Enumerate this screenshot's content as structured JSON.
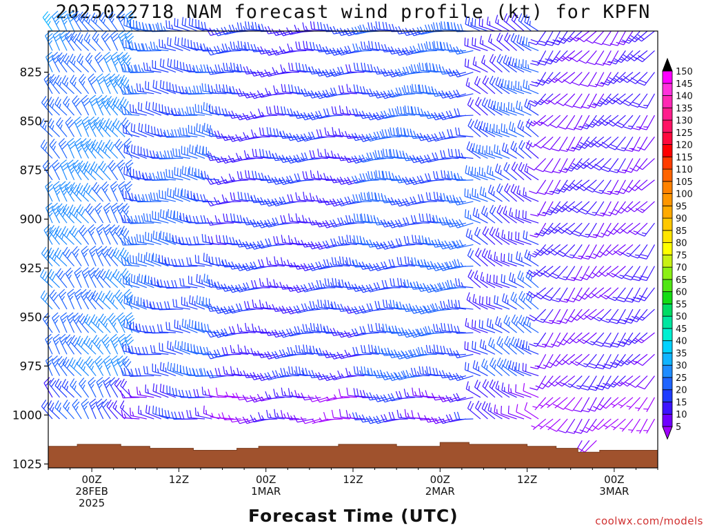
{
  "chart_data": {
    "type": "wind_barb_time_height",
    "title": "2025022718 NAM forecast wind profile (kt) for KPFN",
    "xlabel": "Forecast Time (UTC)",
    "ylabel": "",
    "credit": "coolwx.com/models",
    "units": "kt",
    "y_axis": {
      "label_values": [
        825,
        850,
        875,
        900,
        925,
        950,
        975,
        1000,
        1025
      ],
      "range_hPa": [
        804,
        1027
      ],
      "inverted": true,
      "levels_hPa": [
        804,
        814,
        825,
        836,
        847,
        858,
        869,
        880,
        891,
        902,
        913,
        924,
        935,
        946,
        958,
        969,
        980,
        991,
        1002,
        1013
      ]
    },
    "x_axis": {
      "ticks": [
        {
          "hour": 6,
          "label1": "00Z",
          "label2": "28FEB",
          "label3": "2025"
        },
        {
          "hour": 18,
          "label1": "12Z",
          "label2": "",
          "label3": ""
        },
        {
          "hour": 30,
          "label1": "00Z",
          "label2": "1MAR",
          "label3": ""
        },
        {
          "hour": 42,
          "label1": "12Z",
          "label2": "",
          "label3": ""
        },
        {
          "hour": 54,
          "label1": "00Z",
          "label2": "2MAR",
          "label3": ""
        },
        {
          "hour": 66,
          "label1": "12Z",
          "label2": "",
          "label3": ""
        },
        {
          "hour": 78,
          "label1": "00Z",
          "label2": "3MAR",
          "label3": ""
        }
      ],
      "range_hours": [
        0,
        84
      ],
      "step_hours": 1,
      "start": "2025022718"
    },
    "colorbar": {
      "values": [
        5,
        10,
        15,
        20,
        25,
        30,
        35,
        40,
        45,
        50,
        55,
        60,
        65,
        70,
        75,
        80,
        85,
        90,
        95,
        100,
        105,
        110,
        115,
        120,
        125,
        130,
        135,
        140,
        145,
        150
      ],
      "colors": [
        "#a000ff",
        "#7000ff",
        "#3c14ff",
        "#1e3cff",
        "#1e64ff",
        "#1e8cff",
        "#10b4ff",
        "#00d2ff",
        "#00f0d2",
        "#00e6a0",
        "#00dc64",
        "#14dc14",
        "#50e614",
        "#8cf014",
        "#c8f014",
        "#ffff00",
        "#ffe600",
        "#ffc800",
        "#ffaa00",
        "#ff9600",
        "#ff8200",
        "#ff6400",
        "#ff3c00",
        "#ff0000",
        "#ff0a3c",
        "#ff1464",
        "#ff1e8c",
        "#ff28b4",
        "#ff32dc",
        "#ff00ff"
      ]
    },
    "terrain_surface_hPa_by_hour": [
      [
        0,
        1016
      ],
      [
        4,
        1015
      ],
      [
        10,
        1016
      ],
      [
        14,
        1017
      ],
      [
        20,
        1018
      ],
      [
        24,
        1018
      ],
      [
        26,
        1017
      ],
      [
        29,
        1016
      ],
      [
        34,
        1016
      ],
      [
        40,
        1015
      ],
      [
        48,
        1016
      ],
      [
        54,
        1014
      ],
      [
        58,
        1015
      ],
      [
        66,
        1016
      ],
      [
        70,
        1017
      ],
      [
        73,
        1019
      ],
      [
        76,
        1018
      ],
      [
        84,
        1018
      ]
    ],
    "wind_regimes": [
      {
        "hours": [
          0,
          12
        ],
        "wind_from_deg": 325,
        "speed_kt": 30
      },
      {
        "hours": [
          12,
          24
        ],
        "wind_from_deg": 280,
        "speed_kt": 25
      },
      {
        "hours": [
          24,
          44
        ],
        "wind_from_deg": 265,
        "speed_kt": 20
      },
      {
        "hours": [
          44,
          59
        ],
        "wind_from_deg": 265,
        "speed_kt": 25
      },
      {
        "hours": [
          59,
          68
        ],
        "wind_from_deg": 300,
        "speed_kt": 22
      },
      {
        "hours": [
          68,
          84
        ],
        "wind_from_deg": 220,
        "speed_kt": 15
      }
    ],
    "grid": false,
    "legend_placement": "right colorbar"
  }
}
